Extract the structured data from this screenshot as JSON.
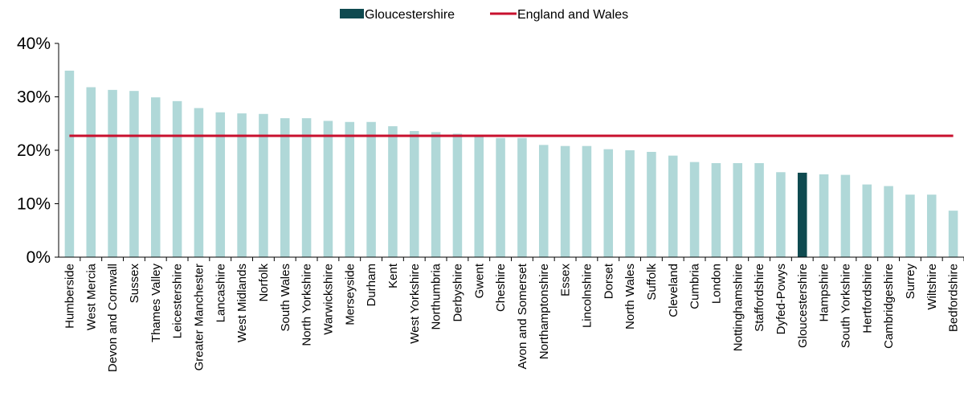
{
  "chart_data": {
    "type": "bar",
    "title": "",
    "xlabel": "",
    "ylabel": "",
    "ylim": [
      0,
      40
    ],
    "yticks": [
      "0%",
      "10%",
      "20%",
      "30%",
      "40%"
    ],
    "ytick_values": [
      0,
      10,
      20,
      30,
      40
    ],
    "grid": false,
    "legend_position": "top-center",
    "categories": [
      "Humberside",
      "West Mercia",
      "Devon and Cornwall",
      "Sussex",
      "Thames Valley",
      "Leicestershire",
      "Greater Manchester",
      "Lancashire",
      "West Midlands",
      "Norfolk",
      "South Wales",
      "North Yorkshire",
      "Warwickshire",
      "Merseyside",
      "Durham",
      "Kent",
      "West Yorkshire",
      "Northumbria",
      "Derbyshire",
      "Gwent",
      "Cheshire",
      "Avon and Somerset",
      "Northamptonshire",
      "Essex",
      "Lincolnshire",
      "Dorset",
      "North Wales",
      "Suffolk",
      "Cleveland",
      "Cumbria",
      "London",
      "Nottinghamshire",
      "Staffordshire",
      "Dyfed-Powys",
      "Gloucestershire",
      "Hampshire",
      "South Yorkshire",
      "Hertfordshire",
      "Cambridgeshire",
      "Surrey",
      "Wiltshire",
      "Bedfordshire"
    ],
    "values": [
      34.9,
      31.8,
      31.3,
      31.1,
      29.9,
      29.2,
      27.9,
      27.1,
      26.9,
      26.8,
      26.0,
      26.0,
      25.5,
      25.3,
      25.3,
      24.5,
      23.6,
      23.4,
      23.1,
      22.9,
      22.3,
      22.3,
      21.0,
      20.8,
      20.8,
      20.2,
      20.0,
      19.7,
      19.0,
      17.8,
      17.6,
      17.6,
      17.6,
      15.9,
      15.8,
      15.5,
      15.4,
      13.6,
      13.3,
      11.7,
      11.7,
      8.7
    ],
    "highlight_category": "Gloucestershire",
    "reference_line": {
      "name": "England and Wales",
      "value": 22.7
    },
    "legend": [
      {
        "label": "Gloucestershire",
        "kind": "bar"
      },
      {
        "label": "England and Wales",
        "kind": "line"
      }
    ],
    "colors": {
      "bar": "#b0d8d8",
      "highlight": "#0f4a50",
      "reference_line": "#c8102e",
      "axis": "#000000"
    }
  }
}
